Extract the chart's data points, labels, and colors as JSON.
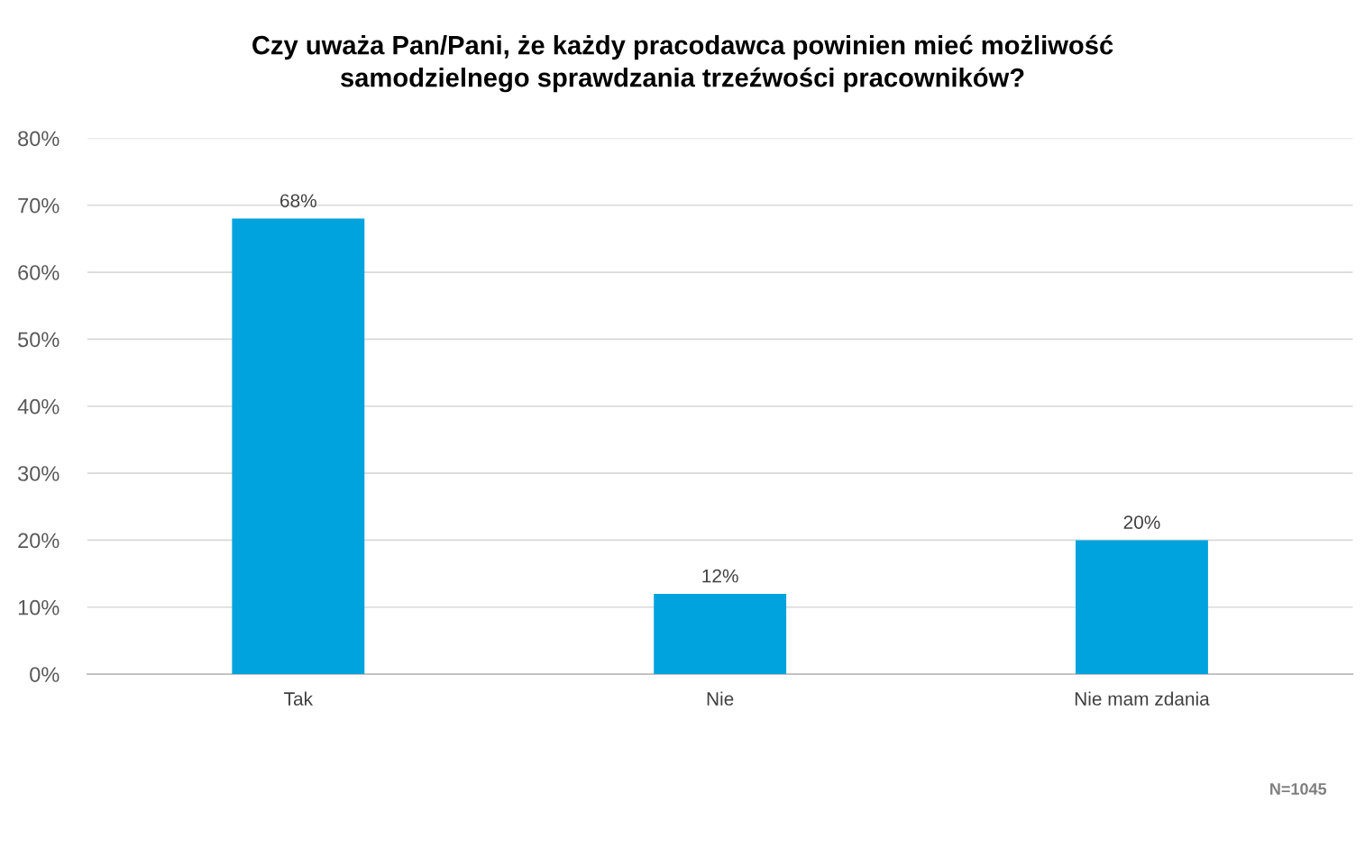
{
  "chart_data": {
    "type": "bar",
    "title": "Czy uważa Pan/Pani, że każdy pracodawca powinien mieć możliwość\nsamodzielnego sprawdzania trzeźwości pracowników?",
    "categories": [
      "Tak",
      "Nie",
      "Nie mam zdania"
    ],
    "values": [
      68,
      12,
      20
    ],
    "color": "#00a3dd",
    "value_labels": [
      "68%",
      "12%",
      "20%"
    ],
    "ylim": [
      0,
      80
    ],
    "yticks": [
      {
        "value": 0,
        "label": "0%"
      },
      {
        "value": 10,
        "label": "10%"
      },
      {
        "value": 20,
        "label": "20%"
      },
      {
        "value": 30,
        "label": "30%"
      },
      {
        "value": 40,
        "label": "40%"
      },
      {
        "value": 50,
        "label": "50%"
      },
      {
        "value": 60,
        "label": "60%"
      },
      {
        "value": 70,
        "label": "70%"
      },
      {
        "value": 80,
        "label": "80%"
      }
    ],
    "grid": "y",
    "annotations": [
      "N=1045"
    ]
  }
}
